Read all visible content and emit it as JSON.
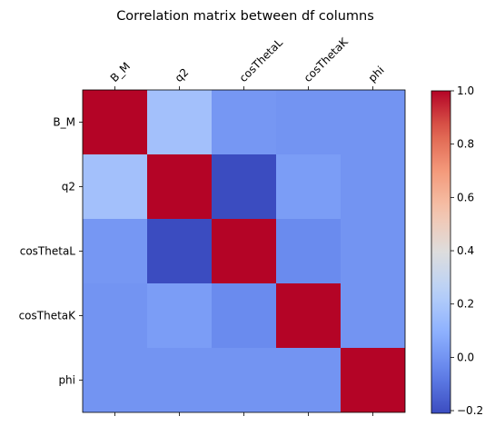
{
  "chart_data": {
    "type": "heatmap",
    "title": "Correlation matrix between df columns",
    "xlabel": "",
    "ylabel": "",
    "x_categories": [
      "B_M",
      "q2",
      "cosThetaL",
      "cosThetaK",
      "phi"
    ],
    "y_categories": [
      "B_M",
      "q2",
      "cosThetaL",
      "cosThetaK",
      "phi"
    ],
    "values": [
      [
        1.0,
        0.17,
        0.01,
        0.0,
        0.0
      ],
      [
        0.17,
        1.0,
        -0.21,
        0.03,
        0.0
      ],
      [
        0.01,
        -0.21,
        1.0,
        -0.03,
        0.0
      ],
      [
        0.0,
        0.03,
        -0.03,
        1.0,
        0.0
      ],
      [
        0.0,
        0.0,
        0.0,
        0.0,
        1.0
      ]
    ],
    "colormap": "coolwarm",
    "vmin": -0.21,
    "vmax": 1.0,
    "colorbar": {
      "ticks": [
        -0.2,
        0.0,
        0.2,
        0.4,
        0.6,
        0.8,
        1.0
      ],
      "tick_labels": [
        "−0.2",
        "0.0",
        "0.2",
        "0.4",
        "0.6",
        "0.8",
        "1.0"
      ],
      "position": "right"
    },
    "x_tick_position": "top",
    "x_tick_rotation": 45,
    "grid": false
  }
}
